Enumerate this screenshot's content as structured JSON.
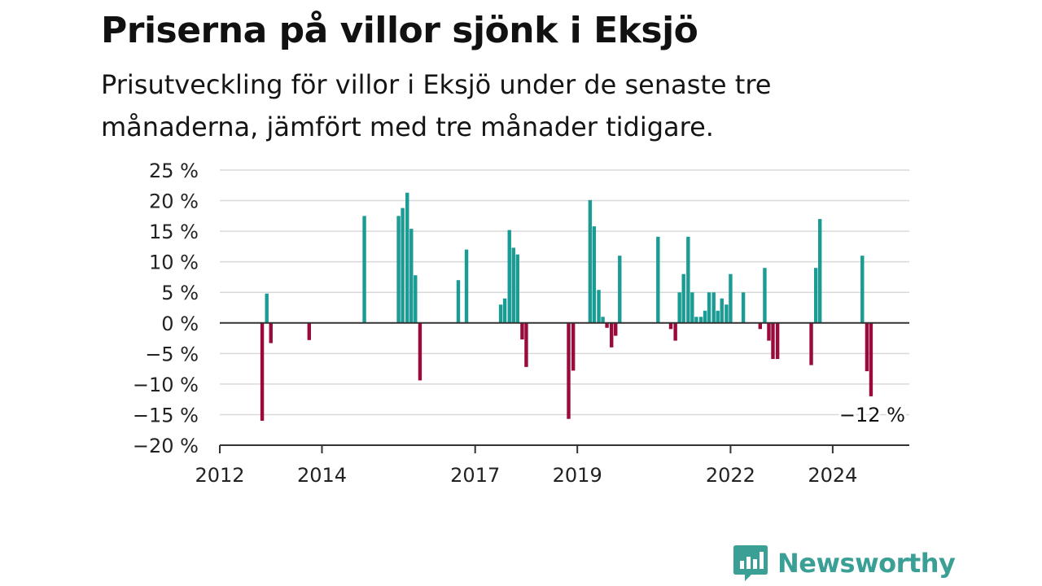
{
  "header": {
    "title": "Priserna på villor sjönk i Eksjö",
    "subtitle": "Prisutveckling för villor i Eksjö under de senaste tre månaderna, jämfört med tre månader tidigare."
  },
  "brand": {
    "name": "Newsworthy",
    "icon": "newsworthy-logo-icon",
    "color": "#3a9f95"
  },
  "colors": {
    "positive": "#1a9c94",
    "negative": "#9b0a3d",
    "grid": "#d9d9d9",
    "axis": "#333333"
  },
  "chart_data": {
    "type": "bar",
    "title": "Priserna på villor sjönk i Eksjö",
    "subtitle": "Prisutveckling för villor i Eksjö under de senaste tre månaderna, jämfört med tre månader tidigare.",
    "xlabel": "",
    "ylabel": "",
    "unit": "%",
    "ylim": [
      -20,
      25
    ],
    "xlim": [
      2012.0,
      2025.5
    ],
    "yticks": [
      25,
      20,
      15,
      10,
      5,
      0,
      -5,
      -10,
      -15,
      -20
    ],
    "ytick_labels": [
      "25 %",
      "20 %",
      "15 %",
      "10 %",
      "5 %",
      "0 %",
      "−5 %",
      "−10 %",
      "−15 %",
      "−20 %"
    ],
    "xticks": [
      2012,
      2014,
      2017,
      2019,
      2022,
      2024
    ],
    "xtick_labels": [
      "2012",
      "2014",
      "2017",
      "2019",
      "2022",
      "2024"
    ],
    "grid": true,
    "annotation": {
      "text": "−12 %",
      "x": 2024.75
    },
    "x": [
      2012.83,
      2012.92,
      2013.0,
      2013.75,
      2014.83,
      2015.5,
      2015.58,
      2015.67,
      2015.75,
      2015.83,
      2015.92,
      2016.67,
      2016.83,
      2017.5,
      2017.58,
      2017.67,
      2017.75,
      2017.83,
      2017.92,
      2018.0,
      2018.83,
      2018.92,
      2019.25,
      2019.33,
      2019.42,
      2019.5,
      2019.58,
      2019.67,
      2019.75,
      2019.83,
      2020.58,
      2020.83,
      2020.92,
      2021.0,
      2021.08,
      2021.17,
      2021.25,
      2021.33,
      2021.42,
      2021.5,
      2021.58,
      2021.67,
      2021.75,
      2021.83,
      2021.92,
      2022.0,
      2022.25,
      2022.58,
      2022.67,
      2022.75,
      2022.83,
      2022.92,
      2023.58,
      2023.67,
      2023.75,
      2024.58,
      2024.67,
      2024.75
    ],
    "values": [
      -16,
      4.8,
      -3.3,
      -2.8,
      17.5,
      17.5,
      18.8,
      21.3,
      15.4,
      7.8,
      -9.4,
      7,
      12,
      3,
      4,
      15.2,
      12.3,
      11.2,
      -2.7,
      -7.2,
      -15.7,
      -7.8,
      20.1,
      15.8,
      5.4,
      1,
      -0.8,
      -4,
      -2.1,
      11,
      14.1,
      -1,
      -2.9,
      5,
      8,
      14.1,
      5,
      1,
      1,
      2,
      5,
      5,
      2,
      4,
      3,
      8,
      5,
      -1,
      9,
      -2.9,
      -5.9,
      -5.9,
      -6.9,
      9,
      17,
      11,
      -7.9,
      -12
    ]
  }
}
